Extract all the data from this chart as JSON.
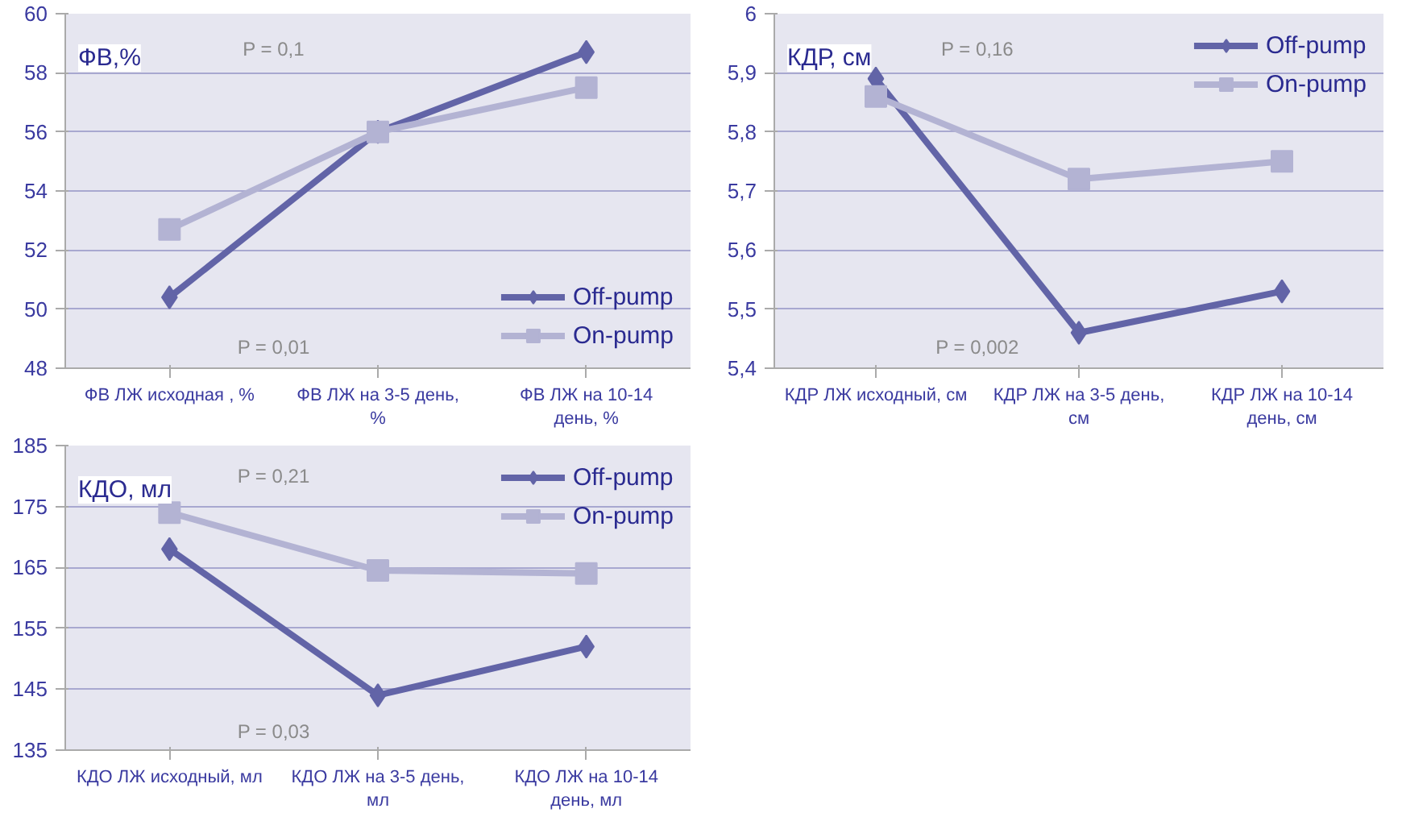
{
  "chart_data": [
    {
      "type": "line",
      "title": "ФВ,%",
      "categories": [
        "ФВ ЛЖ исходная , %",
        "ФВ ЛЖ на 3-5 день, %",
        "ФВ ЛЖ на 10-14 день, %"
      ],
      "series": [
        {
          "name": "Off-pump",
          "color": "#6264a7",
          "marker": "diamond",
          "values": [
            50.4,
            56,
            58.7
          ]
        },
        {
          "name": "On-pump",
          "color": "#b3b3d3",
          "marker": "square",
          "values": [
            52.7,
            56,
            57.5
          ]
        }
      ],
      "ylim": [
        48,
        60
      ],
      "yticks": [
        48,
        50,
        52,
        54,
        56,
        58,
        60
      ],
      "grid": "y",
      "legend": "bottom right",
      "annotations": [
        "P = 0,1",
        "P = 0,01"
      ]
    },
    {
      "type": "line",
      "title": "КДР, см",
      "categories": [
        "КДР ЛЖ исходный, см",
        "КДР  ЛЖ на 3-5 день, см",
        "КДР ЛЖ на 10-14 день, см"
      ],
      "series": [
        {
          "name": "Off-pump",
          "color": "#6264a7",
          "marker": "diamond",
          "values": [
            5.89,
            5.46,
            5.53
          ]
        },
        {
          "name": "On-pump",
          "color": "#b3b3d3",
          "marker": "square",
          "values": [
            5.86,
            5.72,
            5.75
          ]
        }
      ],
      "ylim": [
        5.4,
        6
      ],
      "yticks": [
        {
          "value": 5.4,
          "label": "5,4"
        },
        {
          "value": 5.5,
          "label": "5,5"
        },
        {
          "value": 5.6,
          "label": "5,6"
        },
        {
          "value": 5.7,
          "label": "5,7"
        },
        {
          "value": 5.8,
          "label": "5,8"
        },
        {
          "value": 5.9,
          "label": "5,9"
        },
        6
      ],
      "grid": "y",
      "legend": "top right",
      "annotations": [
        "P = 0,16",
        "P = 0,002"
      ]
    },
    {
      "type": "line",
      "title": "КДО, мл",
      "categories": [
        "КДО ЛЖ исходный, мл",
        "КДО ЛЖ на 3-5 день, мл",
        "КДО ЛЖ на 10-14 день, мл"
      ],
      "series": [
        {
          "name": "Off-pump",
          "color": "#6264a7",
          "marker": "diamond",
          "values": [
            168,
            144,
            152
          ]
        },
        {
          "name": "On-pump",
          "color": "#b3b3d3",
          "marker": "square",
          "values": [
            174,
            164.5,
            164
          ]
        }
      ],
      "ylim": [
        135,
        185
      ],
      "yticks": [
        135,
        145,
        155,
        165,
        175,
        185
      ],
      "grid": "y",
      "legend": "top right",
      "annotations": [
        "P = 0,21",
        "P = 0,03"
      ]
    }
  ]
}
